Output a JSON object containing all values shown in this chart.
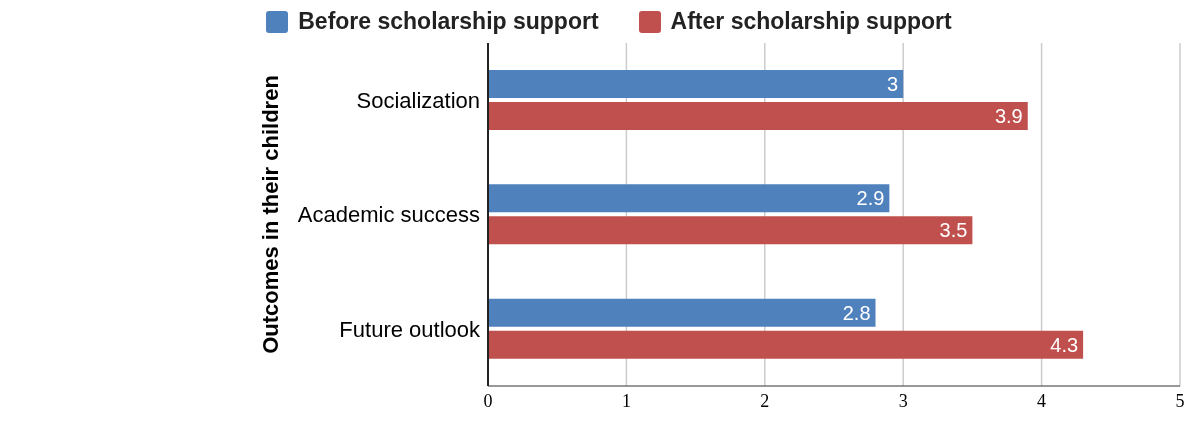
{
  "chart_data": {
    "type": "bar",
    "orientation": "horizontal",
    "ylabel": "Outcomes in their children",
    "categories": [
      "Socialization",
      "Academic success",
      "Future outlook"
    ],
    "series": [
      {
        "name": "Before scholarship support",
        "color": "#4f81bd",
        "values": [
          3,
          2.9,
          2.8
        ]
      },
      {
        "name": "After scholarship support",
        "color": "#c0504d",
        "values": [
          3.9,
          3.5,
          4.3
        ]
      }
    ],
    "xlim": [
      0,
      5
    ],
    "xticks": [
      0,
      1,
      2,
      3,
      4,
      5
    ],
    "grid": "x",
    "legend": "top",
    "data_labels": true
  }
}
